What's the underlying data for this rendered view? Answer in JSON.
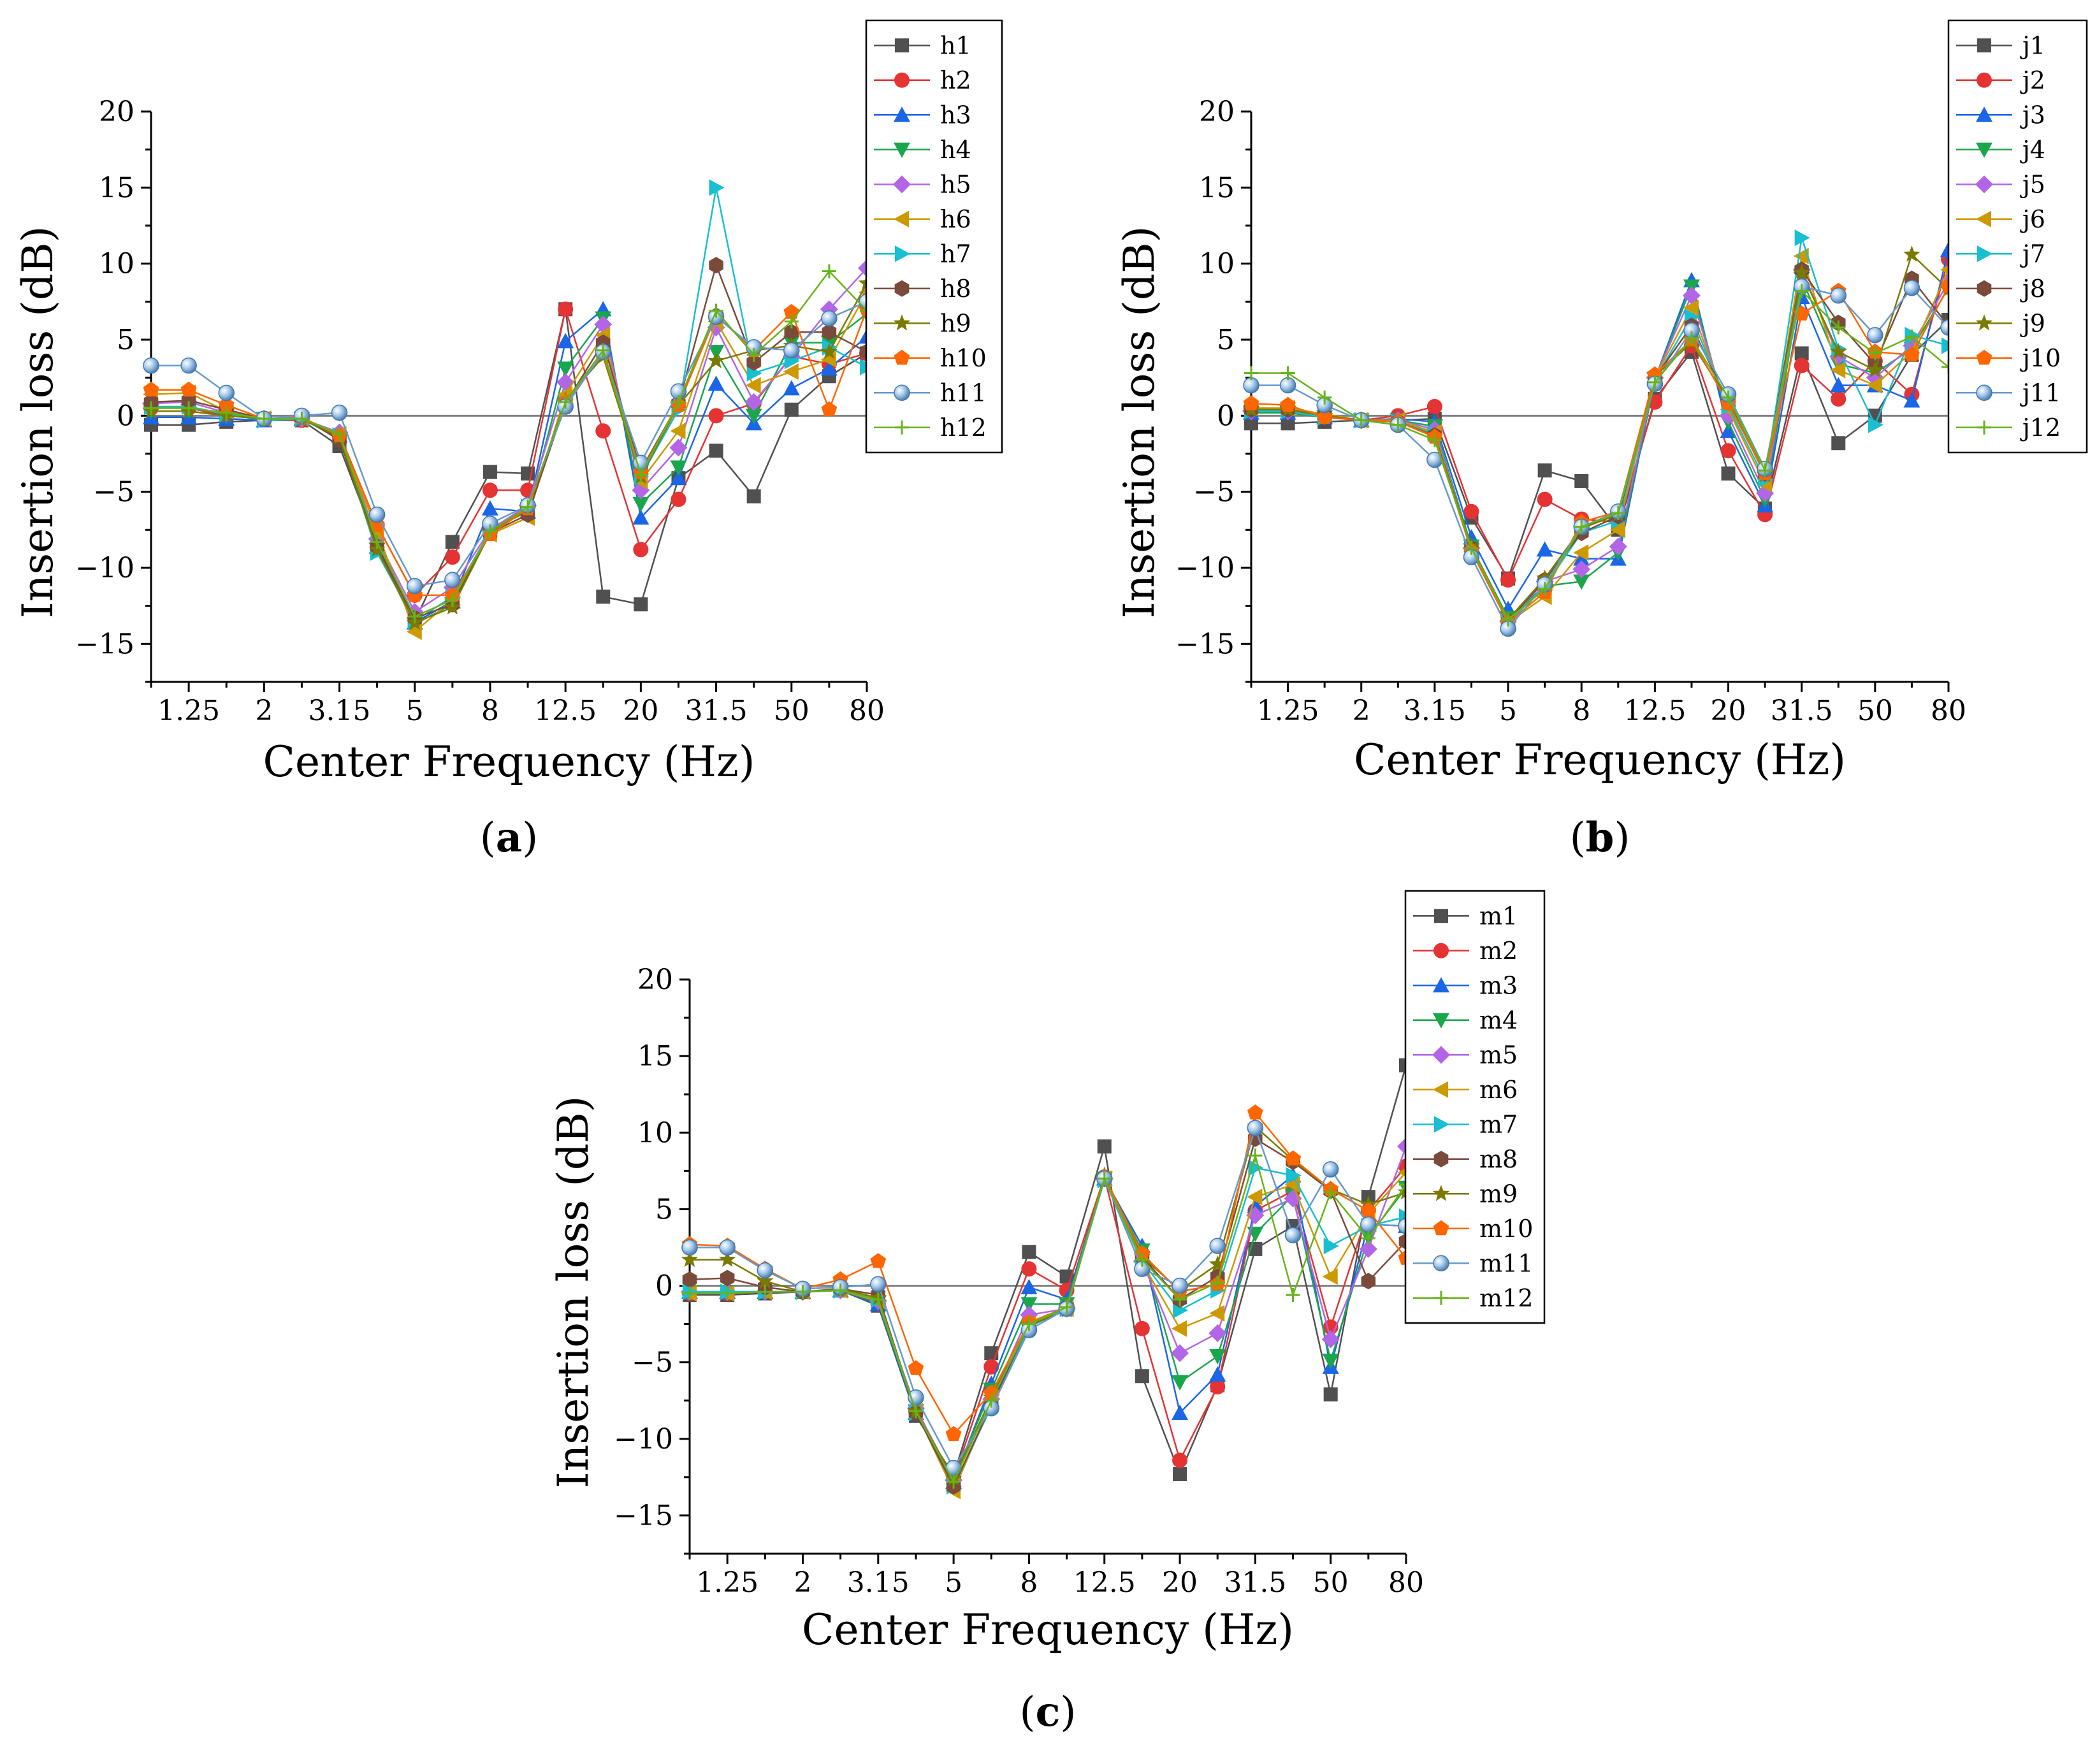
{
  "colors": [
    "#505050",
    "#e53333",
    "#1a66e6",
    "#1aa64d",
    "#b266e6",
    "#cc9900",
    "#17bfd0",
    "#7a4a3a",
    "#7a7a00",
    "#ff6600",
    "#6699cc",
    "#66b31a"
  ],
  "markers": [
    "square",
    "circle",
    "triangle-up",
    "triangle-down",
    "diamond",
    "triangle-left",
    "triangle-right",
    "hexagon",
    "star",
    "pentagon",
    "sphere",
    "plus"
  ],
  "chart_data": [
    {
      "type": "line",
      "panel_label": "(a)",
      "xlabel": "Center Frequency (Hz)",
      "ylabel": "Insertion loss (dB)",
      "ylim": [
        -17.5,
        20
      ],
      "yticks": [
        -15,
        -10,
        -5,
        0,
        5,
        10,
        15,
        20
      ],
      "x_tick_labels": [
        "1.25",
        "2",
        "3.15",
        "5",
        "8",
        "12.5",
        "20",
        "31.5",
        "50",
        "80"
      ],
      "x": [
        "1",
        "1.25",
        "1.6",
        "2",
        "2.5",
        "3.15",
        "4",
        "5",
        "6.3",
        "8",
        "10",
        "12.5",
        "16",
        "20",
        "25",
        "31.5",
        "40",
        "50",
        "63",
        "80"
      ],
      "zero_line": true,
      "legend_position": "top-right",
      "series": [
        {
          "name": "h1",
          "values": [
            -0.6,
            -0.6,
            -0.4,
            -0.3,
            -0.3,
            -2.0,
            -8.5,
            -13.5,
            -8.3,
            -3.7,
            -3.8,
            7.0,
            -11.9,
            -12.4,
            -4.1,
            -2.3,
            -5.3,
            0.4,
            2.6,
            4.1
          ]
        },
        {
          "name": "h2",
          "values": [
            0.5,
            0.5,
            0.0,
            -0.2,
            -0.3,
            -1.2,
            -7.2,
            -11.8,
            -9.3,
            -4.9,
            -4.9,
            7.0,
            -1.0,
            -8.8,
            -5.5,
            0.0,
            0.8,
            3.9,
            3.4,
            4.1
          ]
        },
        {
          "name": "h3",
          "values": [
            -0.1,
            -0.1,
            -0.2,
            -0.3,
            -0.2,
            -1.3,
            -8.6,
            -13.6,
            -12.2,
            -6.1,
            -6.3,
            4.9,
            7.0,
            -6.7,
            -4.1,
            2.1,
            -0.5,
            1.8,
            3.1,
            5.2
          ]
        },
        {
          "name": "h4",
          "values": [
            0.3,
            0.3,
            0.0,
            -0.2,
            -0.2,
            -1.5,
            -8.8,
            -13.7,
            -12.4,
            -7.5,
            -6.3,
            3.1,
            6.4,
            -5.8,
            -3.4,
            4.2,
            0.0,
            4.8,
            4.8,
            6.7
          ]
        },
        {
          "name": "h5",
          "values": [
            0.8,
            0.9,
            0.2,
            -0.2,
            -0.2,
            -1.1,
            -8.1,
            -12.9,
            -11.3,
            -7.5,
            -5.9,
            2.2,
            6.0,
            -4.9,
            -2.1,
            5.8,
            0.9,
            3.9,
            7.0,
            9.7
          ]
        },
        {
          "name": "h6",
          "values": [
            1.4,
            1.5,
            0.3,
            -0.2,
            -0.2,
            -1.2,
            -7.6,
            -14.2,
            -12.1,
            -7.8,
            -6.7,
            1.4,
            5.3,
            -4.3,
            -1.0,
            6.2,
            2.0,
            2.9,
            3.7,
            8.1
          ]
        },
        {
          "name": "h7",
          "values": [
            0.6,
            0.6,
            0.1,
            -0.3,
            -0.2,
            -1.3,
            -9.0,
            -13.5,
            -11.9,
            -7.6,
            -6.0,
            0.8,
            4.2,
            -4.0,
            0.4,
            15.0,
            2.8,
            3.6,
            4.5,
            3.2
          ]
        },
        {
          "name": "h8",
          "values": [
            0.9,
            1.0,
            0.4,
            -0.2,
            -0.1,
            -1.6,
            -8.6,
            -13.3,
            -12.4,
            -7.7,
            -6.5,
            0.8,
            4.8,
            -3.6,
            0.8,
            9.9,
            3.5,
            5.5,
            5.5,
            4.2
          ]
        },
        {
          "name": "h9",
          "values": [
            0.3,
            0.3,
            0.0,
            -0.2,
            -0.2,
            -1.4,
            -8.8,
            -13.6,
            -12.6,
            -7.7,
            -6.1,
            1.0,
            3.9,
            -4.0,
            0.7,
            3.6,
            4.3,
            4.6,
            4.2,
            8.7
          ]
        },
        {
          "name": "h10",
          "values": [
            1.7,
            1.7,
            0.7,
            -0.2,
            -0.1,
            -1.3,
            -7.2,
            -11.8,
            -11.8,
            -7.8,
            -6.1,
            0.9,
            4.1,
            -3.7,
            0.7,
            6.6,
            4.3,
            6.8,
            0.4,
            7.0
          ]
        },
        {
          "name": "h11",
          "values": [
            3.3,
            3.3,
            1.5,
            -0.2,
            0.0,
            0.2,
            -6.5,
            -11.2,
            -10.8,
            -7.1,
            -5.9,
            0.6,
            4.2,
            -3.1,
            1.6,
            6.5,
            4.5,
            4.3,
            6.4,
            7.5
          ]
        },
        {
          "name": "h12",
          "values": [
            0.5,
            0.5,
            0.2,
            -0.2,
            -0.2,
            -1.2,
            -8.3,
            -13.2,
            -12.1,
            -7.6,
            -6.0,
            0.9,
            4.3,
            -3.9,
            0.9,
            6.9,
            4.0,
            6.2,
            9.5,
            6.9
          ]
        }
      ]
    },
    {
      "type": "line",
      "panel_label": "(b)",
      "xlabel": "Center Frequency (Hz)",
      "ylabel": "Insertion loss (dB)",
      "ylim": [
        -17.5,
        20
      ],
      "yticks": [
        -15,
        -10,
        -5,
        0,
        5,
        10,
        15,
        20
      ],
      "x_tick_labels": [
        "1.25",
        "2",
        "3.15",
        "5",
        "8",
        "12.5",
        "20",
        "31.5",
        "50",
        "80"
      ],
      "x": [
        "1",
        "1.25",
        "1.6",
        "2",
        "2.5",
        "3.15",
        "4",
        "5",
        "6.3",
        "8",
        "10",
        "12.5",
        "16",
        "20",
        "25",
        "31.5",
        "40",
        "50",
        "63",
        "80"
      ],
      "zero_line": true,
      "legend_position": "top-right",
      "series": [
        {
          "name": "j1",
          "values": [
            -0.5,
            -0.5,
            -0.4,
            -0.3,
            -0.3,
            -0.2,
            -6.7,
            -10.7,
            -3.6,
            -4.3,
            -7.5,
            1.1,
            4.2,
            -3.8,
            -6.1,
            4.1,
            -1.8,
            0.0,
            4.0,
            6.3
          ]
        },
        {
          "name": "j2",
          "values": [
            0.4,
            0.4,
            0.0,
            -0.3,
            0.0,
            0.6,
            -6.3,
            -10.8,
            -5.5,
            -6.8,
            -7.0,
            0.9,
            4.6,
            -2.3,
            -6.5,
            3.3,
            1.1,
            3.6,
            1.4,
            10.3
          ]
        },
        {
          "name": "j3",
          "values": [
            0.2,
            0.2,
            -0.1,
            -0.3,
            -0.2,
            -0.4,
            -8.0,
            -12.7,
            -8.8,
            -9.4,
            -9.4,
            2.4,
            8.9,
            -1.0,
            -5.9,
            7.8,
            2.0,
            2.0,
            1.0,
            10.9
          ]
        },
        {
          "name": "j4",
          "values": [
            0.2,
            0.2,
            -0.1,
            -0.3,
            -0.3,
            -0.7,
            -8.6,
            -13.3,
            -11.2,
            -10.9,
            -9.0,
            2.4,
            8.5,
            -0.4,
            -5.5,
            9.0,
            3.4,
            2.8,
            4.4,
            8.4
          ]
        },
        {
          "name": "j5",
          "values": [
            0.3,
            0.3,
            0.0,
            -0.3,
            -0.3,
            -0.9,
            -8.7,
            -13.5,
            -10.9,
            -10.1,
            -8.6,
            2.5,
            7.9,
            0.0,
            -5.1,
            9.6,
            3.9,
            2.5,
            4.6,
            8.8
          ]
        },
        {
          "name": "j6",
          "values": [
            0.5,
            0.5,
            0.1,
            -0.3,
            -0.3,
            -1.1,
            -8.9,
            -13.6,
            -11.9,
            -9.0,
            -7.5,
            2.5,
            7.1,
            0.4,
            -4.5,
            10.5,
            3.0,
            2.0,
            4.2,
            9.6
          ]
        },
        {
          "name": "j7",
          "values": [
            0.3,
            0.3,
            -0.1,
            -0.3,
            -0.4,
            -1.2,
            -8.9,
            -13.6,
            -11.2,
            -7.7,
            -6.9,
            2.4,
            6.5,
            0.6,
            -4.2,
            11.7,
            4.4,
            -0.6,
            5.3,
            4.6
          ]
        },
        {
          "name": "j8",
          "values": [
            0.4,
            0.4,
            0.0,
            -0.3,
            -0.4,
            -1.3,
            -8.7,
            -13.5,
            -10.8,
            -7.7,
            -6.6,
            2.5,
            5.9,
            0.9,
            -3.8,
            9.6,
            6.1,
            3.4,
            9.0,
            5.9
          ]
        },
        {
          "name": "j9",
          "values": [
            0.4,
            0.4,
            0.0,
            -0.3,
            -0.4,
            -1.3,
            -8.6,
            -13.4,
            -10.7,
            -7.4,
            -6.5,
            2.6,
            4.8,
            1.0,
            -3.9,
            9.4,
            4.2,
            3.0,
            10.6,
            8.3
          ]
        },
        {
          "name": "j10",
          "values": [
            0.8,
            0.7,
            -0.1,
            -0.3,
            -0.4,
            -1.4,
            -8.9,
            -13.6,
            -11.6,
            -7.0,
            -6.3,
            2.7,
            5.0,
            0.8,
            -3.8,
            6.7,
            8.2,
            4.2,
            4.0,
            8.5
          ]
        },
        {
          "name": "j11",
          "values": [
            2.0,
            2.0,
            0.7,
            -0.3,
            -0.6,
            -2.9,
            -9.3,
            -14.0,
            -11.1,
            -7.3,
            -6.3,
            2.1,
            5.6,
            1.4,
            -3.5,
            8.5,
            7.9,
            5.3,
            8.4,
            5.8
          ]
        },
        {
          "name": "j12",
          "values": [
            2.8,
            2.8,
            1.2,
            -0.3,
            -0.6,
            -1.6,
            -8.7,
            -13.4,
            -11.4,
            -7.3,
            -6.4,
            2.2,
            5.1,
            1.2,
            -3.6,
            8.2,
            5.8,
            4.1,
            5.2,
            3.2
          ]
        }
      ]
    },
    {
      "type": "line",
      "panel_label": "(c)",
      "xlabel": "Center Frequency (Hz)",
      "ylabel": "Insertion loss (dB)",
      "ylim": [
        -17.5,
        20
      ],
      "yticks": [
        -15,
        -10,
        -5,
        0,
        5,
        10,
        15,
        20
      ],
      "x_tick_labels": [
        "1.25",
        "2",
        "3.15",
        "5",
        "8",
        "12.5",
        "20",
        "31.5",
        "50",
        "80"
      ],
      "x": [
        "1",
        "1.25",
        "1.6",
        "2",
        "2.5",
        "3.15",
        "4",
        "5",
        "6.3",
        "8",
        "10",
        "12.5",
        "16",
        "20",
        "25",
        "31.5",
        "40",
        "50",
        "63",
        "80"
      ],
      "zero_line": true,
      "legend_position": "top-right",
      "series": [
        {
          "name": "m1",
          "values": [
            -0.6,
            -0.6,
            -0.5,
            -0.4,
            -0.3,
            -1.3,
            -8.5,
            -12.4,
            -4.4,
            2.2,
            0.6,
            9.1,
            -5.9,
            -12.3,
            -6.5,
            2.4,
            3.9,
            -7.1,
            5.8,
            14.4
          ]
        },
        {
          "name": "m2",
          "values": [
            -0.5,
            -0.5,
            -0.4,
            -0.4,
            -0.3,
            -1.2,
            -8.2,
            -12.6,
            -5.3,
            1.1,
            -0.3,
            7.1,
            -2.8,
            -11.4,
            -6.6,
            4.9,
            6.2,
            -2.7,
            4.9,
            7.8
          ]
        },
        {
          "name": "m3",
          "values": [
            -0.4,
            -0.4,
            -0.4,
            -0.4,
            -0.3,
            -1.2,
            -8.3,
            -12.8,
            -6.4,
            -0.1,
            -0.9,
            7.0,
            2.6,
            -8.3,
            -5.8,
            5.2,
            7.2,
            -5.3,
            4.0,
            3.9
          ]
        },
        {
          "name": "m4",
          "values": [
            -0.4,
            -0.4,
            -0.4,
            -0.4,
            -0.3,
            -1.1,
            -8.2,
            -12.6,
            -6.8,
            -1.2,
            -1.2,
            7.0,
            2.3,
            -6.3,
            -4.6,
            3.4,
            5.9,
            -4.9,
            3.2,
            6.4
          ]
        },
        {
          "name": "m5",
          "values": [
            -0.4,
            -0.4,
            -0.4,
            -0.4,
            -0.3,
            -1.0,
            -8.0,
            -12.7,
            -7.4,
            -1.9,
            -1.5,
            7.0,
            1.6,
            -4.4,
            -3.1,
            4.6,
            5.7,
            -3.5,
            2.4,
            9.1
          ]
        },
        {
          "name": "m6",
          "values": [
            -0.5,
            -0.5,
            -0.4,
            -0.4,
            -0.3,
            -1.0,
            -8.2,
            -13.4,
            -7.7,
            -2.5,
            -1.5,
            7.0,
            1.5,
            -2.8,
            -1.8,
            5.8,
            6.6,
            0.6,
            4.7,
            7.4
          ]
        },
        {
          "name": "m7",
          "values": [
            -0.4,
            -0.4,
            -0.4,
            -0.4,
            -0.3,
            -0.9,
            -8.3,
            -13.1,
            -7.9,
            -2.7,
            -1.5,
            6.9,
            1.6,
            -1.6,
            -0.3,
            7.7,
            7.2,
            2.6,
            3.9,
            4.5
          ]
        },
        {
          "name": "m8",
          "values": [
            0.4,
            0.5,
            -0.1,
            -0.4,
            -0.2,
            -0.6,
            -8.3,
            -13.1,
            -7.8,
            -2.5,
            -1.4,
            7.0,
            1.9,
            -0.9,
            0.6,
            9.6,
            8.1,
            6.2,
            0.3,
            2.9
          ]
        },
        {
          "name": "m9",
          "values": [
            1.7,
            1.7,
            0.3,
            -0.4,
            -0.2,
            -0.8,
            -8.2,
            -12.6,
            -7.3,
            -2.6,
            -1.6,
            7.2,
            1.9,
            -0.3,
            1.4,
            10.4,
            8.2,
            6.3,
            5.3,
            6.1
          ]
        },
        {
          "name": "m10",
          "values": [
            2.7,
            2.6,
            1.1,
            -0.2,
            0.4,
            1.6,
            -5.4,
            -9.7,
            -7.0,
            -2.4,
            -1.4,
            7.1,
            2.1,
            -0.4,
            0.1,
            11.3,
            8.3,
            6.3,
            4.9,
            1.8
          ]
        },
        {
          "name": "m11",
          "values": [
            2.5,
            2.5,
            1.0,
            -0.2,
            -0.1,
            0.1,
            -7.3,
            -11.9,
            -8.0,
            -2.9,
            -1.5,
            7.0,
            1.1,
            0.0,
            2.6,
            10.3,
            3.3,
            7.6,
            4.0,
            3.9
          ]
        },
        {
          "name": "m12",
          "values": [
            -0.5,
            -0.5,
            -0.4,
            -0.4,
            -0.3,
            -0.9,
            -8.2,
            -12.8,
            -7.5,
            -2.5,
            -1.4,
            7.0,
            1.7,
            -0.9,
            0.2,
            8.5,
            -0.6,
            6.1,
            3.1,
            6.6
          ]
        }
      ]
    }
  ]
}
